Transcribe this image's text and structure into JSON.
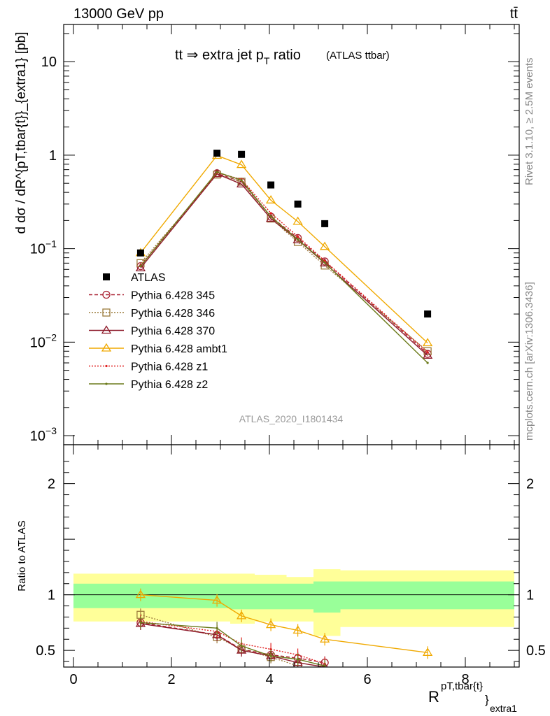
{
  "header": {
    "energy_label": "13000 GeV pp",
    "process_label": "tt̄"
  },
  "side_labels": {
    "rivet": "Rivet 3.1.10, ≥ 2.5M events",
    "mcplots": "mcplots.cern.ch [arXiv:1306.3436]"
  },
  "main_title": {
    "text": "tt ⇒ extra jet p",
    "subscript": "T",
    "suffix": " ratio",
    "small": "(ATLAS ttbar)"
  },
  "watermark": "ATLAS_2020_I1801434",
  "y_label": "d dσ / dR^{pT,tbar{t}}_{extra1}  [pb]",
  "ratio_label": "Ratio to ATLAS",
  "x_label": {
    "base": "R",
    "sup": "pT,tbar{t}",
    "sub": "extra1",
    "brace": "}"
  },
  "chart_data": [
    {
      "type": "line",
      "panel": "main",
      "yscale": "log",
      "xlim": [
        -0.2,
        9.1
      ],
      "ylim": [
        0.0008,
        25
      ],
      "y_ticks": [
        {
          "v": 0.001,
          "b": "10",
          "e": "−3"
        },
        {
          "v": 0.01,
          "b": "10",
          "e": "−2"
        },
        {
          "v": 0.1,
          "b": "10",
          "e": "−1"
        },
        {
          "v": 1,
          "b": "1",
          "e": ""
        },
        {
          "v": 10,
          "b": "10",
          "e": ""
        }
      ],
      "data": {
        "name": "ATLAS",
        "x": [
          1.37,
          2.93,
          3.43,
          4.03,
          4.58,
          5.13,
          7.23
        ],
        "y": [
          0.09,
          1.05,
          1.02,
          0.48,
          0.3,
          0.185,
          0.02
        ]
      },
      "series": [
        {
          "name": "Pythia 6.428 345",
          "color": "#aa2233",
          "dash": "5,3",
          "marker": "circle",
          "x": [
            1.37,
            2.93,
            3.43,
            4.03,
            4.58,
            5.13,
            7.23
          ],
          "y": [
            0.065,
            0.64,
            0.52,
            0.22,
            0.13,
            0.073,
            0.0075
          ]
        },
        {
          "name": "Pythia 6.428 346",
          "color": "#9c7b3c",
          "dash": "2,2",
          "marker": "square",
          "x": [
            1.37,
            2.93,
            3.43,
            4.03,
            4.58,
            5.13,
            7.23
          ],
          "y": [
            0.07,
            0.62,
            0.52,
            0.21,
            0.118,
            0.066,
            0.008
          ]
        },
        {
          "name": "Pythia 6.428 370",
          "color": "#8e1b2b",
          "dash": "",
          "marker": "triangle",
          "x": [
            1.37,
            2.93,
            3.43,
            4.03,
            4.58,
            5.13,
            7.23
          ],
          "y": [
            0.062,
            0.63,
            0.49,
            0.21,
            0.124,
            0.07,
            0.0072
          ]
        },
        {
          "name": "Pythia 6.428 ambt1",
          "color": "#f0a900",
          "dash": "",
          "marker": "triangle",
          "x": [
            1.37,
            2.93,
            3.43,
            4.03,
            4.58,
            5.13,
            7.23
          ],
          "y": [
            0.09,
            0.99,
            0.79,
            0.33,
            0.195,
            0.105,
            0.0098
          ]
        },
        {
          "name": "Pythia 6.428 z1",
          "color": "#e02020",
          "dash": "2,2",
          "marker": "dot",
          "x": [
            1.37,
            2.93,
            3.43,
            4.03,
            4.58,
            5.13,
            7.23
          ],
          "y": [
            0.066,
            0.65,
            0.55,
            0.24,
            0.135,
            0.074,
            0.0078
          ]
        },
        {
          "name": "Pythia 6.428 z2",
          "color": "#6b7a1a",
          "dash": "",
          "marker": "dot",
          "x": [
            1.37,
            2.93,
            3.43,
            4.03,
            4.58,
            5.13,
            7.23
          ],
          "y": [
            0.065,
            0.66,
            0.54,
            0.22,
            0.125,
            0.071,
            0.006
          ]
        }
      ]
    },
    {
      "type": "line",
      "panel": "ratio",
      "xlim": [
        -0.2,
        9.1
      ],
      "ylim": [
        0.35,
        2.35
      ],
      "x_ticks": [
        0,
        2,
        4,
        6,
        8
      ],
      "y_ticks": [
        0.5,
        1,
        2
      ],
      "bands": {
        "edges": [
          0,
          2.65,
          3.2,
          3.7,
          4.35,
          4.9,
          5.45,
          9.0
        ],
        "yellow_lo": [
          0.76,
          0.76,
          0.74,
          0.76,
          0.76,
          0.63,
          0.71
        ],
        "yellow_hi": [
          1.19,
          1.19,
          1.19,
          1.18,
          1.16,
          1.23,
          1.22
        ],
        "green_lo": [
          0.88,
          0.88,
          0.87,
          0.87,
          0.87,
          0.84,
          0.87
        ],
        "green_hi": [
          1.1,
          1.1,
          1.1,
          1.1,
          1.1,
          1.12,
          1.12
        ]
      },
      "series": [
        {
          "name": "Pythia 6.428 345",
          "x": [
            1.37,
            2.93,
            3.43,
            4.03,
            4.58,
            5.13
          ],
          "y": [
            0.75,
            0.64,
            0.51,
            0.46,
            0.43,
            0.39
          ]
        },
        {
          "name": "Pythia 6.428 346",
          "x": [
            1.37,
            2.93,
            3.43,
            4.03,
            4.58
          ],
          "y": [
            0.82,
            0.62,
            0.51,
            0.44,
            0.36
          ]
        },
        {
          "name": "Pythia 6.428 370",
          "x": [
            1.37,
            2.93,
            3.43,
            4.03,
            4.58,
            5.13
          ],
          "y": [
            0.74,
            0.64,
            0.5,
            0.45,
            0.39,
            0.35
          ]
        },
        {
          "name": "Pythia 6.428 ambt1",
          "x": [
            1.37,
            2.93,
            3.43,
            4.03,
            4.58,
            5.13,
            7.23
          ],
          "y": [
            1.0,
            0.95,
            0.81,
            0.73,
            0.68,
            0.6,
            0.48
          ]
        },
        {
          "name": "Pythia 6.428 z1",
          "x": [
            1.37,
            2.93,
            3.43,
            4.03,
            4.58,
            5.13
          ],
          "y": [
            0.76,
            0.67,
            0.56,
            0.51,
            0.46,
            0.38
          ]
        },
        {
          "name": "Pythia 6.428 z2",
          "x": [
            1.37,
            2.93,
            3.43,
            4.03,
            4.58,
            5.13
          ],
          "y": [
            0.75,
            0.7,
            0.54,
            0.45,
            0.42,
            0.36
          ]
        }
      ]
    }
  ]
}
